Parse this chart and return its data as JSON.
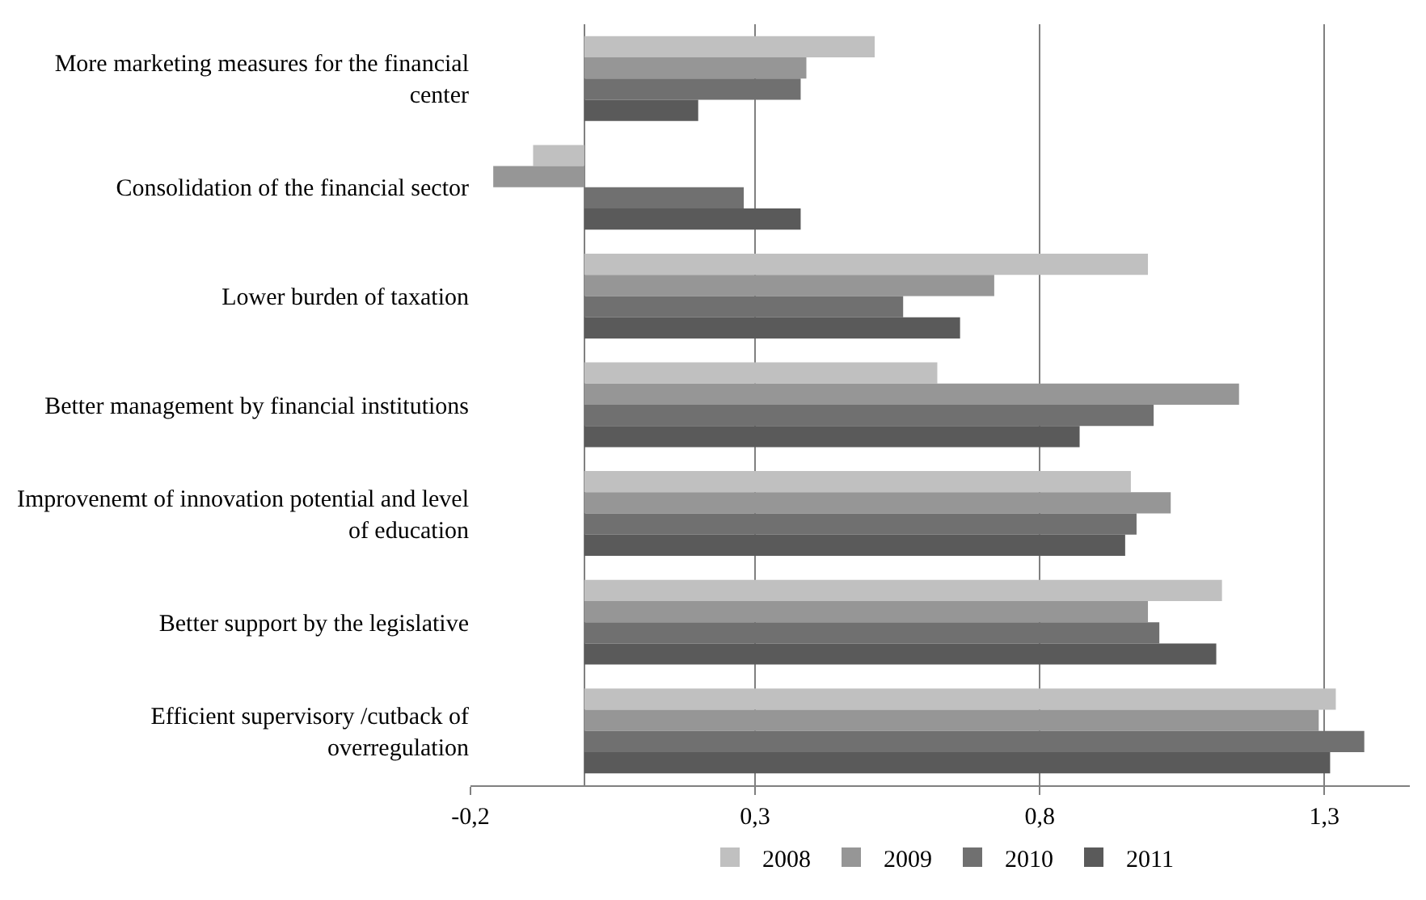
{
  "chart_data": {
    "type": "bar",
    "orientation": "horizontal",
    "categories": [
      "More marketing measures for the financial center",
      "Consolidation of the financial sector",
      "Lower burden of taxation",
      "Better management by financial institutions",
      "Improvenemt of innovation potential and level of education",
      "Better support by the legislative",
      "Efficient supervisory /cutback of overregulation"
    ],
    "series": [
      {
        "name": "2008",
        "color": "#c0c0c0",
        "values": [
          0.51,
          -0.09,
          0.99,
          0.62,
          0.96,
          1.12,
          1.32
        ]
      },
      {
        "name": "2009",
        "color": "#969696",
        "values": [
          0.39,
          -0.16,
          0.72,
          1.15,
          1.03,
          0.99,
          1.29
        ]
      },
      {
        "name": "2010",
        "color": "#707070",
        "values": [
          0.38,
          0.28,
          0.56,
          1.0,
          0.97,
          1.01,
          1.37
        ]
      },
      {
        "name": "2011",
        "color": "#5a5a5a",
        "values": [
          0.2,
          0.38,
          0.66,
          0.87,
          0.95,
          1.11,
          1.31
        ]
      }
    ],
    "xlim": [
      -0.2,
      1.45
    ],
    "xticks": [
      {
        "value": -0.2,
        "label": "-0,2"
      },
      {
        "value": 0.3,
        "label": "0,3"
      },
      {
        "value": 0.8,
        "label": "0,8"
      },
      {
        "value": 1.3,
        "label": "1,3"
      }
    ],
    "grid": "x",
    "legend": "bottom"
  }
}
